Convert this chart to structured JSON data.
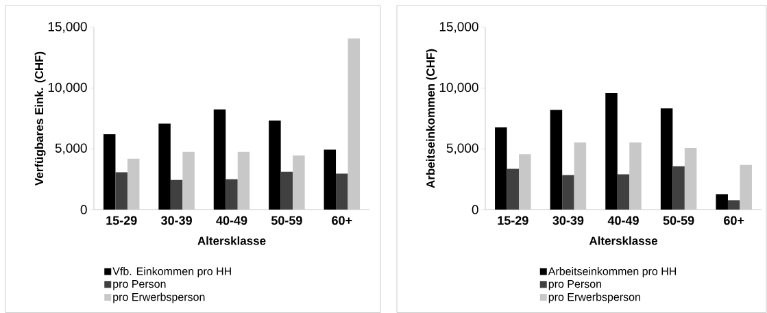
{
  "chart_data": [
    {
      "type": "bar",
      "xlabel": "Altersklasse",
      "ylabel": "Verfügbares Eink. (CHF)",
      "categories": [
        "15-29",
        "30-39",
        "40-49",
        "50-59",
        "60+"
      ],
      "series": [
        {
          "name": "Vfb. Einkommen pro HH",
          "color": "#000000",
          "values": [
            6200,
            7070,
            8250,
            7330,
            4930
          ]
        },
        {
          "name": "pro Person",
          "color": "#404040",
          "values": [
            3080,
            2440,
            2500,
            3120,
            2960
          ]
        },
        {
          "name": "pro Erwerbsperson",
          "color": "#c8c8c8",
          "values": [
            4190,
            4750,
            4750,
            4450,
            14090
          ]
        }
      ],
      "ylim": [
        0,
        15000
      ],
      "yticks": [
        0,
        {
          "value": 5000,
          "label": "5,000"
        },
        {
          "value": 10000,
          "label": "10,000"
        },
        {
          "value": 15000,
          "label": "15,000"
        }
      ],
      "legend": "bottom"
    },
    {
      "type": "bar",
      "xlabel": "Altersklasse",
      "ylabel": "Arbeitseinkommen (CHF)",
      "categories": [
        "15-29",
        "30-39",
        "40-49",
        "50-59",
        "60+"
      ],
      "series": [
        {
          "name": "Arbeitseinkommen pro HH",
          "color": "#000000",
          "values": [
            6760,
            8210,
            9580,
            8330,
            1270
          ]
        },
        {
          "name": "pro Person",
          "color": "#404040",
          "values": [
            3360,
            2840,
            2900,
            3560,
            770
          ]
        },
        {
          "name": "pro Erwerbsperson",
          "color": "#c8c8c8",
          "values": [
            4550,
            5520,
            5520,
            5070,
            3680
          ]
        }
      ],
      "ylim": [
        0,
        15000
      ],
      "yticks": [
        0,
        {
          "value": 5000,
          "label": "5,000"
        },
        {
          "value": 10000,
          "label": "10,000"
        },
        {
          "value": 15000,
          "label": "15,000"
        }
      ],
      "legend": "bottom"
    }
  ]
}
